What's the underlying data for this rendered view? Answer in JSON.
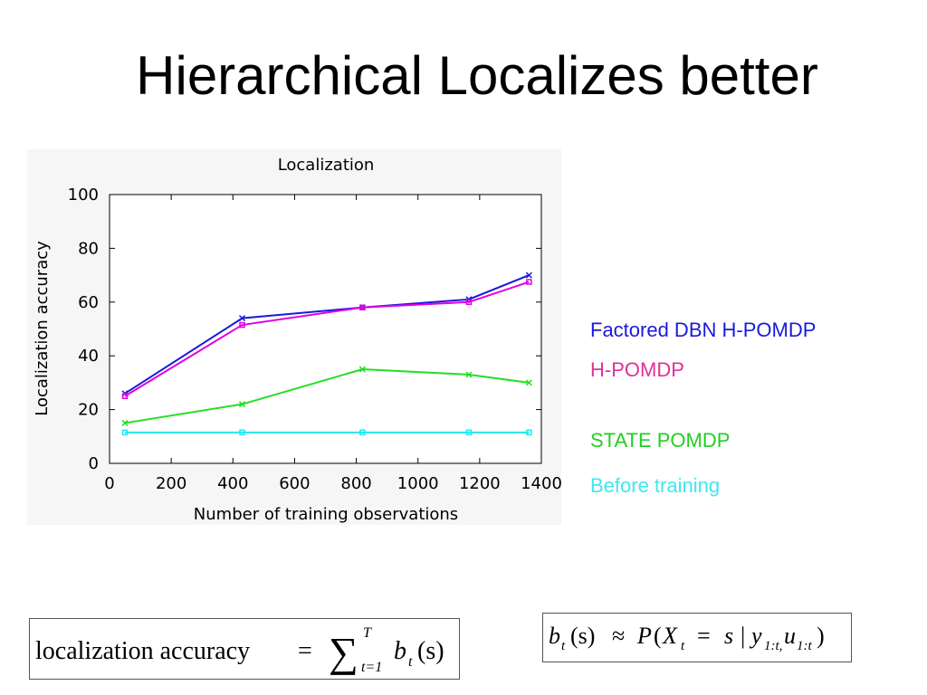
{
  "slide": {
    "title": "Hierarchical Localizes better"
  },
  "legend": {
    "items": [
      {
        "label": "Factored DBN H-POMDP",
        "color": "#1a1adc"
      },
      {
        "label": "H-POMDP",
        "color": "#e0309a"
      },
      {
        "label": "STATE POMDP",
        "color": "#20d020"
      },
      {
        "label": "Before training",
        "color": "#3ee8f0"
      }
    ]
  },
  "chart_data": {
    "type": "line",
    "title": "Localization",
    "xlabel": "Number of training observations",
    "ylabel": "Localization accuracy",
    "xlim": [
      0,
      1400
    ],
    "ylim": [
      0,
      100
    ],
    "x_ticks": [
      "0",
      "200",
      "400",
      "600",
      "800",
      "1000",
      "1200",
      "1400"
    ],
    "y_ticks": [
      "0",
      "20",
      "40",
      "60",
      "80",
      "100"
    ],
    "grid": false,
    "x": [
      50,
      430,
      820,
      1165,
      1360
    ],
    "series": [
      {
        "values": [
          26,
          54,
          58,
          61,
          70
        ],
        "color": "#1a1adc",
        "marker": "x"
      },
      {
        "values": [
          25,
          51.5,
          58,
          60,
          67.5
        ],
        "color": "#e000e0",
        "marker": "square"
      },
      {
        "values": [
          15,
          22,
          35,
          33,
          30
        ],
        "color": "#20e020",
        "marker": "x"
      },
      {
        "values": [
          11.5,
          11.5,
          11.5,
          11.5,
          11.5
        ],
        "color": "#20e8f0",
        "marker": "square"
      }
    ]
  },
  "formulas": {
    "accuracy": {
      "lhs": "localization accuracy",
      "equals": "=",
      "sum": "∑",
      "upper": "T",
      "lower": "t=1",
      "b": "b",
      "b_sub": "t",
      "arg": "(s)"
    },
    "belief": {
      "b": "b",
      "b_sub": "t",
      "arg": "(s)",
      "approx": "≈",
      "P": "P",
      "open": "(",
      "X": "X",
      "X_sub": "t",
      "eq": "=",
      "s": "s",
      "given": "|",
      "y": "y",
      "y_sub": "1:t,",
      "u": "u",
      "u_sub": "1:t",
      "close": ")"
    }
  }
}
